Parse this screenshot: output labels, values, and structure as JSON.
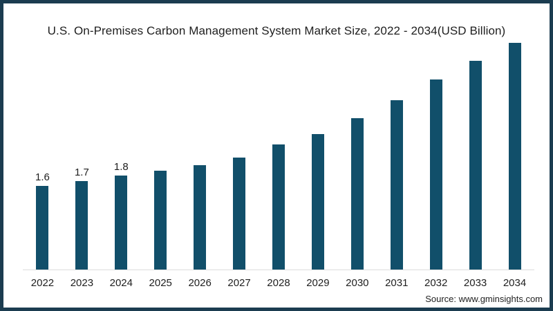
{
  "title": "U.S. On-Premises Carbon Management System Market Size, 2022 - 2034(USD Billion)",
  "source": "Source: www.gminsights.com",
  "colors": {
    "bar": "#114f6a",
    "frame": "#1b3c50",
    "axis_line": "#dcdcdc",
    "text": "#1e1e1e"
  },
  "chart_data": {
    "type": "bar",
    "title": "U.S. On-Premises Carbon Management System Market Size, 2022 - 2034(USD Billion)",
    "xlabel": "",
    "ylabel": "",
    "categories": [
      "2022",
      "2023",
      "2024",
      "2025",
      "2026",
      "2027",
      "2028",
      "2029",
      "2030",
      "2031",
      "2032",
      "2033",
      "2034"
    ],
    "values": [
      1.6,
      1.7,
      1.8,
      1.9,
      2.0,
      2.15,
      2.4,
      2.6,
      2.9,
      3.25,
      3.65,
      4.0,
      4.35
    ],
    "data_labels": [
      "1.6",
      "1.7",
      "1.8",
      "",
      "",
      "",
      "",
      "",
      "",
      "",
      "",
      "",
      ""
    ],
    "ylim": [
      0,
      4.6
    ],
    "grid": false,
    "legend": "none",
    "unit": "USD Billion"
  }
}
